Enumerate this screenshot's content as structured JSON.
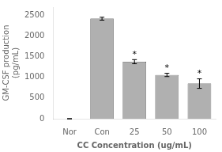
{
  "chart_data": {
    "type": "bar",
    "categories": [
      "Nor",
      "Con",
      "25",
      "50",
      "100"
    ],
    "values": [
      0,
      2420,
      1380,
      1060,
      850
    ],
    "errors": [
      0,
      35,
      50,
      40,
      115
    ],
    "color": "#b0b0b0",
    "xlabel": "CC Concentration (ug/mL)",
    "ylabel": "GM-CSF production\n(pg/mL)",
    "ylim": [
      0,
      2700
    ],
    "yticks": [
      0,
      500,
      1000,
      1500,
      2000,
      2500
    ],
    "grid": false,
    "annotations": [
      {
        "x": "25",
        "text": "*"
      },
      {
        "x": "50",
        "text": "*"
      },
      {
        "x": "100",
        "text": "*"
      }
    ]
  }
}
